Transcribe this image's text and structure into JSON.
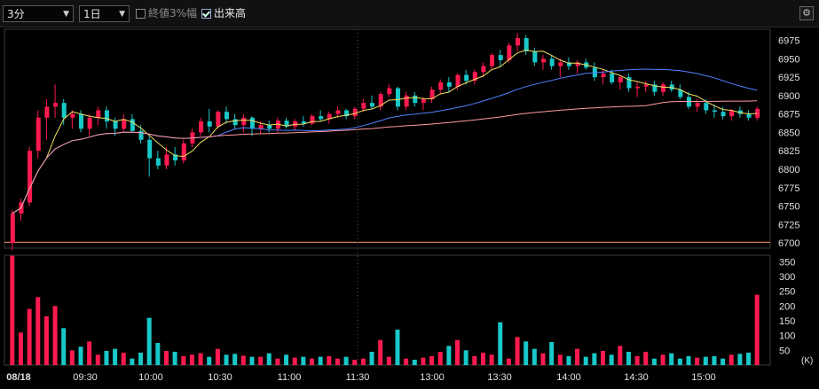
{
  "toolbar": {
    "interval": "3分",
    "period": "1日",
    "option_prev_close": {
      "label": "終値3%幅",
      "checked": false
    },
    "option_volume": {
      "label": "出来高",
      "checked": true
    },
    "settings_icon": "gear-icon"
  },
  "colors": {
    "up": "#ff1a50",
    "down": "#19c8c8",
    "ma_short": "#f0e060",
    "ma_mid": "#4f82ff",
    "ma_long": "#ff9aa0",
    "prev_close": "#ff9a70"
  },
  "chart_data": [
    {
      "type": "candlestick",
      "y_ticks": [
        "6975",
        "6950",
        "6925",
        "6900",
        "6875",
        "6850",
        "6825",
        "6800",
        "6775",
        "6750",
        "6725",
        "6700"
      ],
      "ylim": [
        6693,
        6990
      ],
      "prev_close": 6701,
      "candles": [
        [
          6700,
          6745,
          6690,
          6740
        ],
        [
          6740,
          6760,
          6730,
          6755
        ],
        [
          6755,
          6830,
          6750,
          6825
        ],
        [
          6825,
          6880,
          6815,
          6870
        ],
        [
          6870,
          6895,
          6840,
          6885
        ],
        [
          6885,
          6915,
          6870,
          6890
        ],
        [
          6890,
          6895,
          6860,
          6870
        ],
        [
          6870,
          6880,
          6855,
          6875
        ],
        [
          6875,
          6880,
          6850,
          6855
        ],
        [
          6855,
          6875,
          6845,
          6870
        ],
        [
          6870,
          6885,
          6860,
          6880
        ],
        [
          6880,
          6885,
          6855,
          6865
        ],
        [
          6865,
          6870,
          6845,
          6855
        ],
        [
          6855,
          6875,
          6850,
          6868
        ],
        [
          6868,
          6875,
          6850,
          6852
        ],
        [
          6852,
          6860,
          6835,
          6840
        ],
        [
          6840,
          6845,
          6790,
          6815
        ],
        [
          6815,
          6825,
          6800,
          6805
        ],
        [
          6805,
          6830,
          6800,
          6820
        ],
        [
          6820,
          6830,
          6805,
          6812
        ],
        [
          6812,
          6840,
          6808,
          6835
        ],
        [
          6835,
          6855,
          6830,
          6850
        ],
        [
          6850,
          6870,
          6845,
          6865
        ],
        [
          6865,
          6882,
          6850,
          6858
        ],
        [
          6858,
          6880,
          6855,
          6878
        ],
        [
          6878,
          6885,
          6862,
          6868
        ],
        [
          6868,
          6875,
          6855,
          6860
        ],
        [
          6860,
          6875,
          6850,
          6870
        ],
        [
          6870,
          6872,
          6845,
          6855
        ],
        [
          6855,
          6865,
          6848,
          6860
        ],
        [
          6860,
          6866,
          6850,
          6855
        ],
        [
          6855,
          6870,
          6850,
          6866
        ],
        [
          6866,
          6870,
          6855,
          6858
        ],
        [
          6858,
          6868,
          6852,
          6865
        ],
        [
          6865,
          6872,
          6858,
          6862
        ],
        [
          6862,
          6875,
          6860,
          6872
        ],
        [
          6872,
          6880,
          6865,
          6868
        ],
        [
          6868,
          6878,
          6862,
          6875
        ],
        [
          6875,
          6885,
          6870,
          6880
        ],
        [
          6880,
          6882,
          6868,
          6872
        ],
        [
          6872,
          6885,
          6868,
          6882
        ],
        [
          6882,
          6895,
          6878,
          6890
        ],
        [
          6890,
          6900,
          6882,
          6885
        ],
        [
          6885,
          6905,
          6880,
          6902
        ],
        [
          6902,
          6915,
          6898,
          6910
        ],
        [
          6910,
          6912,
          6880,
          6885
        ],
        [
          6885,
          6905,
          6880,
          6900
        ],
        [
          6900,
          6905,
          6885,
          6890
        ],
        [
          6890,
          6898,
          6880,
          6895
        ],
        [
          6895,
          6912,
          6890,
          6908
        ],
        [
          6908,
          6922,
          6902,
          6918
        ],
        [
          6918,
          6925,
          6905,
          6912
        ],
        [
          6912,
          6930,
          6908,
          6928
        ],
        [
          6928,
          6935,
          6915,
          6920
        ],
        [
          6920,
          6935,
          6915,
          6932
        ],
        [
          6932,
          6945,
          6925,
          6940
        ],
        [
          6940,
          6958,
          6935,
          6955
        ],
        [
          6955,
          6962,
          6940,
          6948
        ],
        [
          6948,
          6972,
          6945,
          6968
        ],
        [
          6968,
          6985,
          6960,
          6978
        ],
        [
          6978,
          6982,
          6955,
          6960
        ],
        [
          6960,
          6965,
          6940,
          6945
        ],
        [
          6945,
          6955,
          6935,
          6950
        ],
        [
          6950,
          6955,
          6935,
          6940
        ],
        [
          6940,
          6950,
          6925,
          6945
        ],
        [
          6945,
          6952,
          6935,
          6940
        ],
        [
          6940,
          6948,
          6930,
          6945
        ],
        [
          6945,
          6950,
          6935,
          6938
        ],
        [
          6938,
          6945,
          6920,
          6925
        ],
        [
          6925,
          6935,
          6915,
          6930
        ],
        [
          6930,
          6935,
          6915,
          6918
        ],
        [
          6918,
          6928,
          6908,
          6925
        ],
        [
          6925,
          6930,
          6905,
          6910
        ],
        [
          6910,
          6918,
          6898,
          6912
        ],
        [
          6912,
          6920,
          6905,
          6915
        ],
        [
          6915,
          6920,
          6900,
          6905
        ],
        [
          6905,
          6918,
          6900,
          6915
        ],
        [
          6915,
          6920,
          6905,
          6908
        ],
        [
          6908,
          6915,
          6895,
          6898
        ],
        [
          6898,
          6905,
          6882,
          6885
        ],
        [
          6885,
          6895,
          6878,
          6890
        ],
        [
          6890,
          6895,
          6875,
          6880
        ],
        [
          6880,
          6888,
          6870,
          6878
        ],
        [
          6878,
          6885,
          6868,
          6872
        ],
        [
          6872,
          6882,
          6866,
          6880
        ],
        [
          6880,
          6885,
          6870,
          6875
        ],
        [
          6875,
          6880,
          6866,
          6870
        ],
        [
          6870,
          6885,
          6866,
          6882
        ]
      ]
    },
    {
      "type": "bar",
      "y_ticks": [
        "350",
        "300",
        "250",
        "200",
        "150",
        "100",
        "50"
      ],
      "unit": "(K)",
      "ylim": [
        0,
        372
      ],
      "x_ticks": [
        "08/18",
        "09:30",
        "10:00",
        "10:30",
        "11:00",
        "11:30",
        "13:00",
        "13:30",
        "14:00",
        "14:30",
        "15:00"
      ],
      "values": [
        370,
        110,
        190,
        230,
        165,
        200,
        125,
        50,
        62,
        80,
        35,
        48,
        55,
        42,
        22,
        42,
        160,
        75,
        48,
        45,
        30,
        35,
        40,
        28,
        55,
        35,
        38,
        32,
        28,
        28,
        40,
        22,
        35,
        25,
        28,
        22,
        28,
        30,
        22,
        28,
        18,
        22,
        45,
        85,
        28,
        120,
        22,
        18,
        25,
        30,
        45,
        65,
        85,
        50,
        30,
        42,
        35,
        145,
        22,
        95,
        80,
        55,
        40,
        78,
        35,
        30,
        55,
        28,
        40,
        48,
        35,
        65,
        45,
        30,
        45,
        22,
        35,
        40,
        22,
        30,
        25,
        28,
        30,
        22,
        35,
        38,
        42,
        238
      ]
    }
  ]
}
